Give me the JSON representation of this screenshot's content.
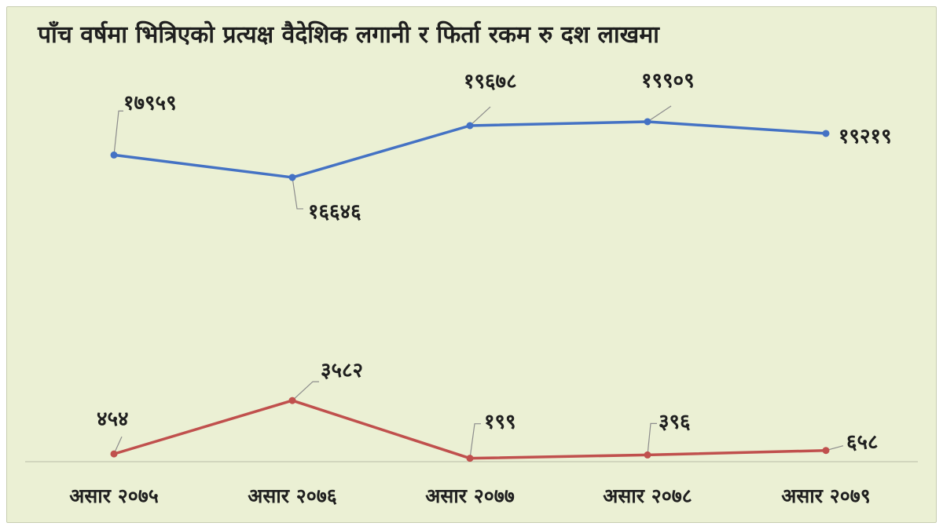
{
  "chart_data": {
    "type": "line",
    "title": "पाँच वर्षमा भित्रिएको प्रत्यक्ष वैदेशिक लगानी र फिर्ता रकम रु दश लाखमा",
    "categories": [
      "असार २०७५",
      "असार २०७६",
      "असार २०७७",
      "असार २०७८",
      "असार २०७९"
    ],
    "series": [
      {
        "values": [
          17959,
          16646,
          19678,
          19909,
          19219
        ],
        "labels": [
          "१७९५९",
          "१६६४६",
          "१९६७८",
          "१९९०९",
          "१९२१९"
        ],
        "color": "#4472c4"
      },
      {
        "values": [
          454,
          3582,
          199,
          396,
          658
        ],
        "labels": [
          "४५४",
          "३५८२",
          "१९९",
          "३९६",
          "६५८"
        ],
        "color": "#c0504d"
      }
    ],
    "legend": "none",
    "grid": false
  }
}
